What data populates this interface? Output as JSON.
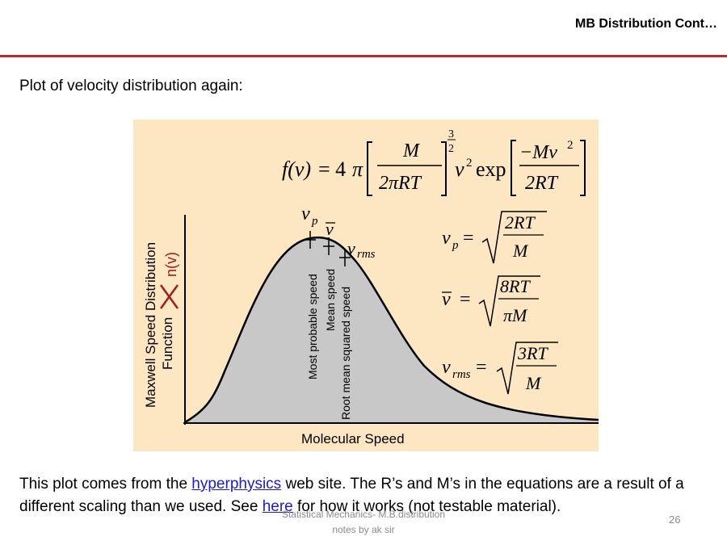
{
  "slide": {
    "title": "MB Distribution  Cont…",
    "intro": "Plot of velocity distribution again:",
    "caption": {
      "part1": "This plot comes from the ",
      "link1": "hyperphysics",
      "part2": " web site.  The R’s and M’s in the equations are a result of a different scaling than we used.  See ",
      "link2": "here",
      "part3": " for how it works (not testable material)."
    },
    "footer_line1": "Statistical Mechanics- M.B.distribution",
    "footer_line2": "notes by ak sir",
    "page_number": "26"
  },
  "figure": {
    "y_axis_label_line1": "Maxwell Speed Distribution",
    "y_axis_label_line2": "Function",
    "annotation": "n(v)",
    "x_axis_label": "Molecular Speed",
    "marker_labels": [
      "Most probable speed",
      "Mean speed",
      "Root mean squared speed"
    ],
    "formula_main": "f(v) = 4π[M / 2πRT]^(3/2) v² exp[−Mv² / 2RT]",
    "formula_vp": "vp = √(2RT/M)",
    "formula_vmean": "v̄ = √(8RT/πM)",
    "formula_vrms": "vrms = √(3RT/M)"
  }
}
